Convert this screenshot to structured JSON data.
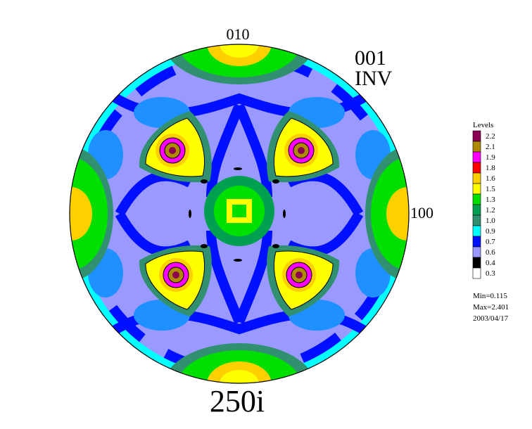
{
  "chart_data": {
    "type": "heatmap",
    "projection": "pole-figure",
    "pole_labels": {
      "top": "010",
      "right": "100"
    },
    "plane_label": "001",
    "mode_label": "INV",
    "sample_label": "250i",
    "legend_title": "Levels",
    "legend_placement": "right",
    "levels": [
      {
        "value": "2.2",
        "color": "#8b0050"
      },
      {
        "value": "2.1",
        "color": "#b08a00"
      },
      {
        "value": "1.9",
        "color": "#ff00ff"
      },
      {
        "value": "1.8",
        "color": "#ff0000"
      },
      {
        "value": "1.6",
        "color": "#ffd000"
      },
      {
        "value": "1.5",
        "color": "#ffff00"
      },
      {
        "value": "1.3",
        "color": "#00e000"
      },
      {
        "value": "1.2",
        "color": "#00a050"
      },
      {
        "value": "1.0",
        "color": "#309070"
      },
      {
        "value": "0.9",
        "color": "#00ffff"
      },
      {
        "value": "0.7",
        "color": "#0010ff"
      },
      {
        "value": "0.6",
        "color": "#9999ff"
      },
      {
        "value": "0.4",
        "color": "#000000"
      },
      {
        "value": "0.3",
        "color": "#ffffff"
      }
    ],
    "stats": {
      "min": "Min=0.115",
      "max": "Max=2.401",
      "date": "2003/04/17"
    }
  }
}
